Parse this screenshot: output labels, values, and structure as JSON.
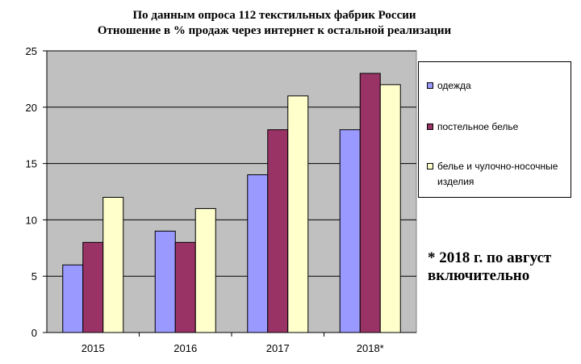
{
  "title_line1": "По данным опроса 112 текстильных фабрик России",
  "title_line2": "Отношение в % продаж через интернет к остальной реализации",
  "note": "* 2018 г. по август включительно",
  "chart_data": {
    "type": "bar",
    "categories": [
      "2015",
      "2016",
      "2017",
      "2018*"
    ],
    "series": [
      {
        "name": "одежда",
        "color": "#9999ff",
        "values": [
          6,
          9,
          14,
          18
        ]
      },
      {
        "name": "постельное белье",
        "color": "#993366",
        "values": [
          8,
          8,
          18,
          23
        ]
      },
      {
        "name": "белье и чулочно-носочные изделия",
        "color": "#ffffcc",
        "values": [
          12,
          11,
          21,
          22
        ]
      }
    ],
    "yticks": [
      0,
      5,
      10,
      15,
      20,
      25
    ],
    "ylim": [
      0,
      25
    ],
    "plot_background": "#c0c0c0",
    "grid": true,
    "legend_position": "right"
  }
}
